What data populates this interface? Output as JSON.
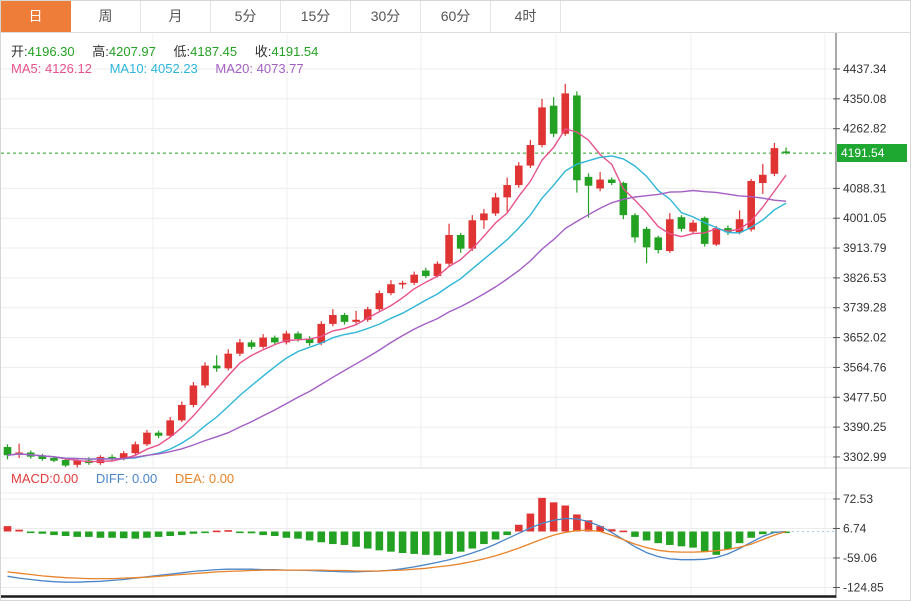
{
  "tabs": [
    {
      "label": "日",
      "active": true
    },
    {
      "label": "周",
      "active": false
    },
    {
      "label": "月",
      "active": false
    },
    {
      "label": "5分",
      "active": false
    },
    {
      "label": "15分",
      "active": false
    },
    {
      "label": "30分",
      "active": false
    },
    {
      "label": "60分",
      "active": false
    },
    {
      "label": "4时",
      "active": false
    }
  ],
  "info": {
    "open_label": "开:",
    "open": "4196.30",
    "high_label": "高:",
    "high": "4207.97",
    "low_label": "低:",
    "low": "4187.45",
    "close_label": "收:",
    "close": "4191.54",
    "ma5_label": "MA5:",
    "ma5": "4126.12",
    "ma10_label": "MA10:",
    "ma10": "4052.23",
    "ma20_label": "MA20:",
    "ma20": "4073.77"
  },
  "macd_info": {
    "macd_label": "MACD:",
    "macd": "0.00",
    "diff_label": "DIFF:",
    "diff": "0.00",
    "dea_label": "DEA:",
    "dea": "0.00"
  },
  "price_tag": "4191.54",
  "colors": {
    "up": "#e03333",
    "down": "#22a122",
    "tag": "#1ea832",
    "dotted_price_line": "#22a122",
    "ma5": "#e8528c",
    "ma10": "#2eb6d8",
    "ma20": "#a45fc4",
    "diff_line": "#4a86c8",
    "dea_line": "#e8832a",
    "zero_tail": "#a8cfe8",
    "grid": "#ececec",
    "grid_v": "#efefef",
    "axis_line": "#555",
    "axis_text": "#333",
    "tab_active": "#ef7d3a"
  },
  "chart_data": {
    "type": "candlestick",
    "main": {
      "y_axis_labels": [
        "4437.34",
        "4350.08",
        "4262.82",
        "4088.31",
        "4001.05",
        "3913.79",
        "3826.53",
        "3739.28",
        "3652.02",
        "3564.76",
        "3477.50",
        "3390.25",
        "3302.99"
      ],
      "current_price": 4191.54,
      "ma_periods": [
        5,
        10,
        20
      ],
      "candles_ohlc": [
        [
          3332,
          3340,
          3296,
          3308
        ],
        [
          3310,
          3342,
          3300,
          3316
        ],
        [
          3316,
          3322,
          3298,
          3304
        ],
        [
          3306,
          3312,
          3292,
          3297
        ],
        [
          3300,
          3304,
          3288,
          3292
        ],
        [
          3294,
          3300,
          3274,
          3278
        ],
        [
          3280,
          3298,
          3272,
          3293
        ],
        [
          3293,
          3302,
          3280,
          3285
        ],
        [
          3285,
          3308,
          3280,
          3303
        ],
        [
          3303,
          3310,
          3292,
          3297
        ],
        [
          3297,
          3320,
          3293,
          3314
        ],
        [
          3314,
          3348,
          3308,
          3340
        ],
        [
          3340,
          3382,
          3335,
          3374
        ],
        [
          3374,
          3380,
          3358,
          3365
        ],
        [
          3365,
          3420,
          3362,
          3410
        ],
        [
          3410,
          3465,
          3405,
          3455
        ],
        [
          3455,
          3522,
          3448,
          3512
        ],
        [
          3512,
          3580,
          3505,
          3570
        ],
        [
          3570,
          3600,
          3552,
          3562
        ],
        [
          3562,
          3618,
          3556,
          3605
        ],
        [
          3605,
          3648,
          3598,
          3638
        ],
        [
          3638,
          3645,
          3618,
          3625
        ],
        [
          3625,
          3662,
          3620,
          3652
        ],
        [
          3652,
          3658,
          3630,
          3638
        ],
        [
          3638,
          3672,
          3632,
          3664
        ],
        [
          3664,
          3670,
          3640,
          3648
        ],
        [
          3648,
          3656,
          3628,
          3636
        ],
        [
          3636,
          3700,
          3630,
          3692
        ],
        [
          3692,
          3735,
          3685,
          3718
        ],
        [
          3718,
          3724,
          3690,
          3698
        ],
        [
          3698,
          3730,
          3692,
          3704
        ],
        [
          3704,
          3742,
          3698,
          3735
        ],
        [
          3735,
          3790,
          3730,
          3782
        ],
        [
          3782,
          3820,
          3776,
          3808
        ],
        [
          3808,
          3818,
          3795,
          3812
        ],
        [
          3812,
          3845,
          3806,
          3836
        ],
        [
          3848,
          3856,
          3826,
          3832
        ],
        [
          3832,
          3875,
          3828,
          3868
        ],
        [
          3868,
          3985,
          3862,
          3952
        ],
        [
          3952,
          3958,
          3900,
          3912
        ],
        [
          3912,
          4010,
          3905,
          3995
        ],
        [
          3995,
          4028,
          3970,
          4015
        ],
        [
          4015,
          4075,
          4008,
          4062
        ],
        [
          4062,
          4120,
          4020,
          4098
        ],
        [
          4098,
          4165,
          4090,
          4155
        ],
        [
          4155,
          4230,
          4148,
          4215
        ],
        [
          4215,
          4350,
          4208,
          4325
        ],
        [
          4330,
          4355,
          4238,
          4248
        ],
        [
          4248,
          4394,
          4242,
          4366
        ],
        [
          4360,
          4372,
          4076,
          4112
        ],
        [
          4122,
          4132,
          4003,
          4096
        ],
        [
          4088,
          4136,
          4080,
          4114
        ],
        [
          4114,
          4120,
          4098,
          4104
        ],
        [
          4104,
          4108,
          3998,
          4010
        ],
        [
          4010,
          4016,
          3930,
          3945
        ],
        [
          3970,
          3976,
          3869,
          3916
        ],
        [
          3945,
          3950,
          3898,
          3908
        ],
        [
          3905,
          4016,
          3900,
          3998
        ],
        [
          4004,
          4010,
          3962,
          3970
        ],
        [
          3962,
          3996,
          3956,
          3988
        ],
        [
          4002,
          4006,
          3918,
          3926
        ],
        [
          3924,
          3978,
          3920,
          3972
        ],
        [
          3972,
          3980,
          3952,
          3960
        ],
        [
          3960,
          4024,
          3954,
          3998
        ],
        [
          3968,
          4116,
          3962,
          4110
        ],
        [
          4104,
          4160,
          4072,
          4128
        ],
        [
          4131,
          4221,
          4124,
          4206
        ],
        [
          4196.3,
          4207.97,
          4187.45,
          4191.54
        ]
      ]
    },
    "macd": {
      "y_axis_labels": [
        "72.53",
        "6.74",
        "-59.06",
        "-124.85"
      ],
      "histogram": [
        12,
        4,
        -2,
        -5,
        -8,
        -10,
        -12,
        -12,
        -14,
        -14,
        -15,
        -16,
        -14,
        -12,
        -10,
        -8,
        -5,
        -3,
        2,
        3,
        -2,
        -4,
        -8,
        -10,
        -14,
        -16,
        -20,
        -24,
        -28,
        -30,
        -34,
        -38,
        -42,
        -45,
        -48,
        -50,
        -52,
        -53,
        -50,
        -45,
        -38,
        -28,
        -18,
        -8,
        15,
        40,
        75,
        65,
        58,
        38,
        25,
        12,
        5,
        2,
        -12,
        -20,
        -26,
        -30,
        -33,
        -36,
        -45,
        -52,
        -40,
        -26,
        -14,
        -6,
        -2,
        0
      ],
      "diff": [
        -100,
        -104,
        -107,
        -110,
        -112,
        -113,
        -113,
        -112,
        -111,
        -109,
        -107,
        -104,
        -101,
        -98,
        -95,
        -92,
        -89,
        -87,
        -85,
        -84,
        -84,
        -84,
        -85,
        -85,
        -86,
        -86,
        -87,
        -88,
        -89,
        -90,
        -90,
        -89,
        -88,
        -86,
        -83,
        -79,
        -74,
        -69,
        -63,
        -56,
        -48,
        -39,
        -28,
        -16,
        -4,
        8,
        18,
        25,
        29,
        28,
        22,
        12,
        -2,
        -18,
        -34,
        -47,
        -56,
        -61,
        -63,
        -63,
        -62,
        -58,
        -50,
        -38,
        -24,
        -11,
        -2,
        0
      ],
      "dea": [
        -90,
        -93,
        -96,
        -99,
        -101,
        -103,
        -104,
        -105,
        -105,
        -105,
        -104,
        -103,
        -102,
        -100,
        -98,
        -96,
        -94,
        -92,
        -90,
        -89,
        -88,
        -87,
        -86,
        -86,
        -86,
        -86,
        -86,
        -86,
        -87,
        -87,
        -88,
        -88,
        -88,
        -87,
        -86,
        -84,
        -82,
        -79,
        -76,
        -72,
        -67,
        -61,
        -54,
        -46,
        -37,
        -27,
        -17,
        -8,
        -2,
        2,
        3,
        0,
        -8,
        -18,
        -28,
        -36,
        -42,
        -45,
        -46,
        -46,
        -45,
        -43,
        -40,
        -35,
        -28,
        -18,
        -8,
        0
      ]
    }
  }
}
